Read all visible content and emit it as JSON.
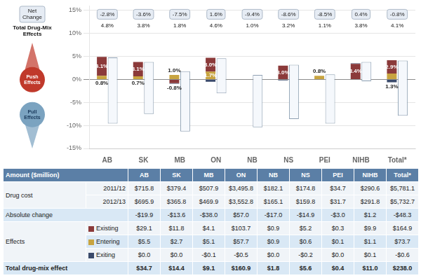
{
  "chart_data": {
    "type": "bar",
    "categories": [
      "AB",
      "SK",
      "MB",
      "ON",
      "NB",
      "NS",
      "PEI",
      "NIHB",
      "Total*"
    ],
    "stacked": true,
    "grid": true,
    "ylim": [
      -15,
      16
    ],
    "yticks": [
      {
        "value": -15,
        "label": "-15%"
      },
      {
        "value": -10,
        "label": "-10%"
      },
      {
        "value": -5,
        "label": "-5%"
      },
      {
        "value": 0,
        "label": "0%"
      },
      {
        "value": 5,
        "label": "5%"
      },
      {
        "value": 10,
        "label": "10%"
      },
      {
        "value": 15,
        "label": "15%"
      }
    ],
    "series": [
      {
        "name": "Total Drug-Mix\nEffects",
        "color": "#F5F8FC",
        "low": [
          -9.6,
          -7.5,
          -11.3,
          -3.0,
          -10.4,
          -8.6,
          -9.6,
          -0.4,
          -7.9
        ],
        "values": [
          4.8,
          3.8,
          1.8,
          4.6,
          1.0,
          3.2,
          1.1,
          3.8,
          4.1
        ],
        "value_labels": [
          "4.8%",
          "3.8%",
          "1.8%",
          "4.6%",
          "1.0%",
          "3.2%",
          "1.1%",
          "3.8%",
          "4.1%"
        ]
      },
      {
        "name": "Entering",
        "color": "#C8A440",
        "data_labels": true,
        "values": [
          0.8,
          0.7,
          1.0,
          1.7,
          0.0,
          0.0,
          0.8,
          0.0,
          1.3
        ],
        "value_labels": [
          "0.8%",
          "0.7%",
          "1.0%",
          "1.7%",
          null,
          null,
          "0.8%",
          null,
          "1.3%"
        ]
      },
      {
        "name": "Existing",
        "color": "#8B3A3A",
        "data_labels": true,
        "values": [
          4.1,
          3.1,
          -0.8,
          3.0,
          0.0,
          3.0,
          0.0,
          3.4,
          2.9
        ],
        "value_labels": [
          "4.1%",
          "3.1%",
          "-0.8%",
          "3.0%",
          null,
          "3.0%",
          null,
          "3.4%",
          "2.9%"
        ]
      },
      {
        "name": "Exiting",
        "color": "#3A4A6B",
        "values": [
          0.0,
          0.0,
          -0.1,
          -0.5,
          0.0,
          -0.2,
          0.0,
          0.1,
          -0.6
        ]
      }
    ],
    "annotations": [
      {
        "text": "Net\nChange",
        "row": [
          "-2.8%",
          "-3.6%",
          "-7.5%",
          "1.6%",
          "-9.4%",
          "-8.6%",
          "-8.5%",
          "0.4%",
          "-0.8%"
        ]
      },
      {
        "text": "Push\nEffects",
        "color": "#C0392B"
      },
      {
        "text": "Pull\nEffects",
        "color": "#7BA3C0"
      }
    ],
    "table": {
      "title": "Amount ($million)",
      "color": "#5B7FA6",
      "rows": [
        {
          "group": "Drug cost",
          "label": "2011/12",
          "color": "#F0F4F8",
          "values": [
            "$715.8",
            "$379.4",
            "$507.9",
            "$3,495.8",
            "$182.1",
            "$174.8",
            "$34.7",
            "$290.6",
            "$5,781.1"
          ]
        },
        {
          "group": "Drug cost",
          "label": "2012/13",
          "color": "#F0F4F8",
          "values": [
            "$695.9",
            "$365.8",
            "$469.9",
            "$3,552.8",
            "$165.1",
            "$159.8",
            "$31.7",
            "$291.8",
            "$5,732.7"
          ]
        },
        {
          "label": "Absolute change",
          "color": "#D9E8F5",
          "values": [
            "-$19.9",
            "-$13.6",
            "-$38.0",
            "$57.0",
            "-$17.0",
            "-$14.9",
            "-$3.0",
            "$1.2",
            "-$48.3"
          ]
        },
        {
          "group": "Effects",
          "label": "Existing",
          "color": "#F0F4F8",
          "values": [
            "$29.1",
            "$11.8",
            "$4.1",
            "$103.7",
            "$0.9",
            "$5.2",
            "$0.3",
            "$9.9",
            "$164.9"
          ]
        },
        {
          "group": "Effects",
          "label": "Entering",
          "color": "#D9E8F5",
          "values": [
            "$5.5",
            "$2.7",
            "$5.1",
            "$57.7",
            "$0.9",
            "$0.6",
            "$0.1",
            "$1.1",
            "$73.7"
          ]
        },
        {
          "group": "Effects",
          "label": "Exiting",
          "color": "#F0F4F8",
          "values": [
            "$0.0",
            "$0.0",
            "-$0.1",
            "-$0.5",
            "$0.0",
            "-$0.2",
            "$0.0",
            "$0.1",
            "-$0.6"
          ]
        },
        {
          "label": "Total drug-mix effect",
          "color": "#D9E8F5",
          "values": [
            "$34.7",
            "$14.4",
            "$9.1",
            "$160.9",
            "$1.8",
            "$5.6",
            "$0.4",
            "$11.0",
            "$238.0"
          ]
        }
      ]
    }
  }
}
